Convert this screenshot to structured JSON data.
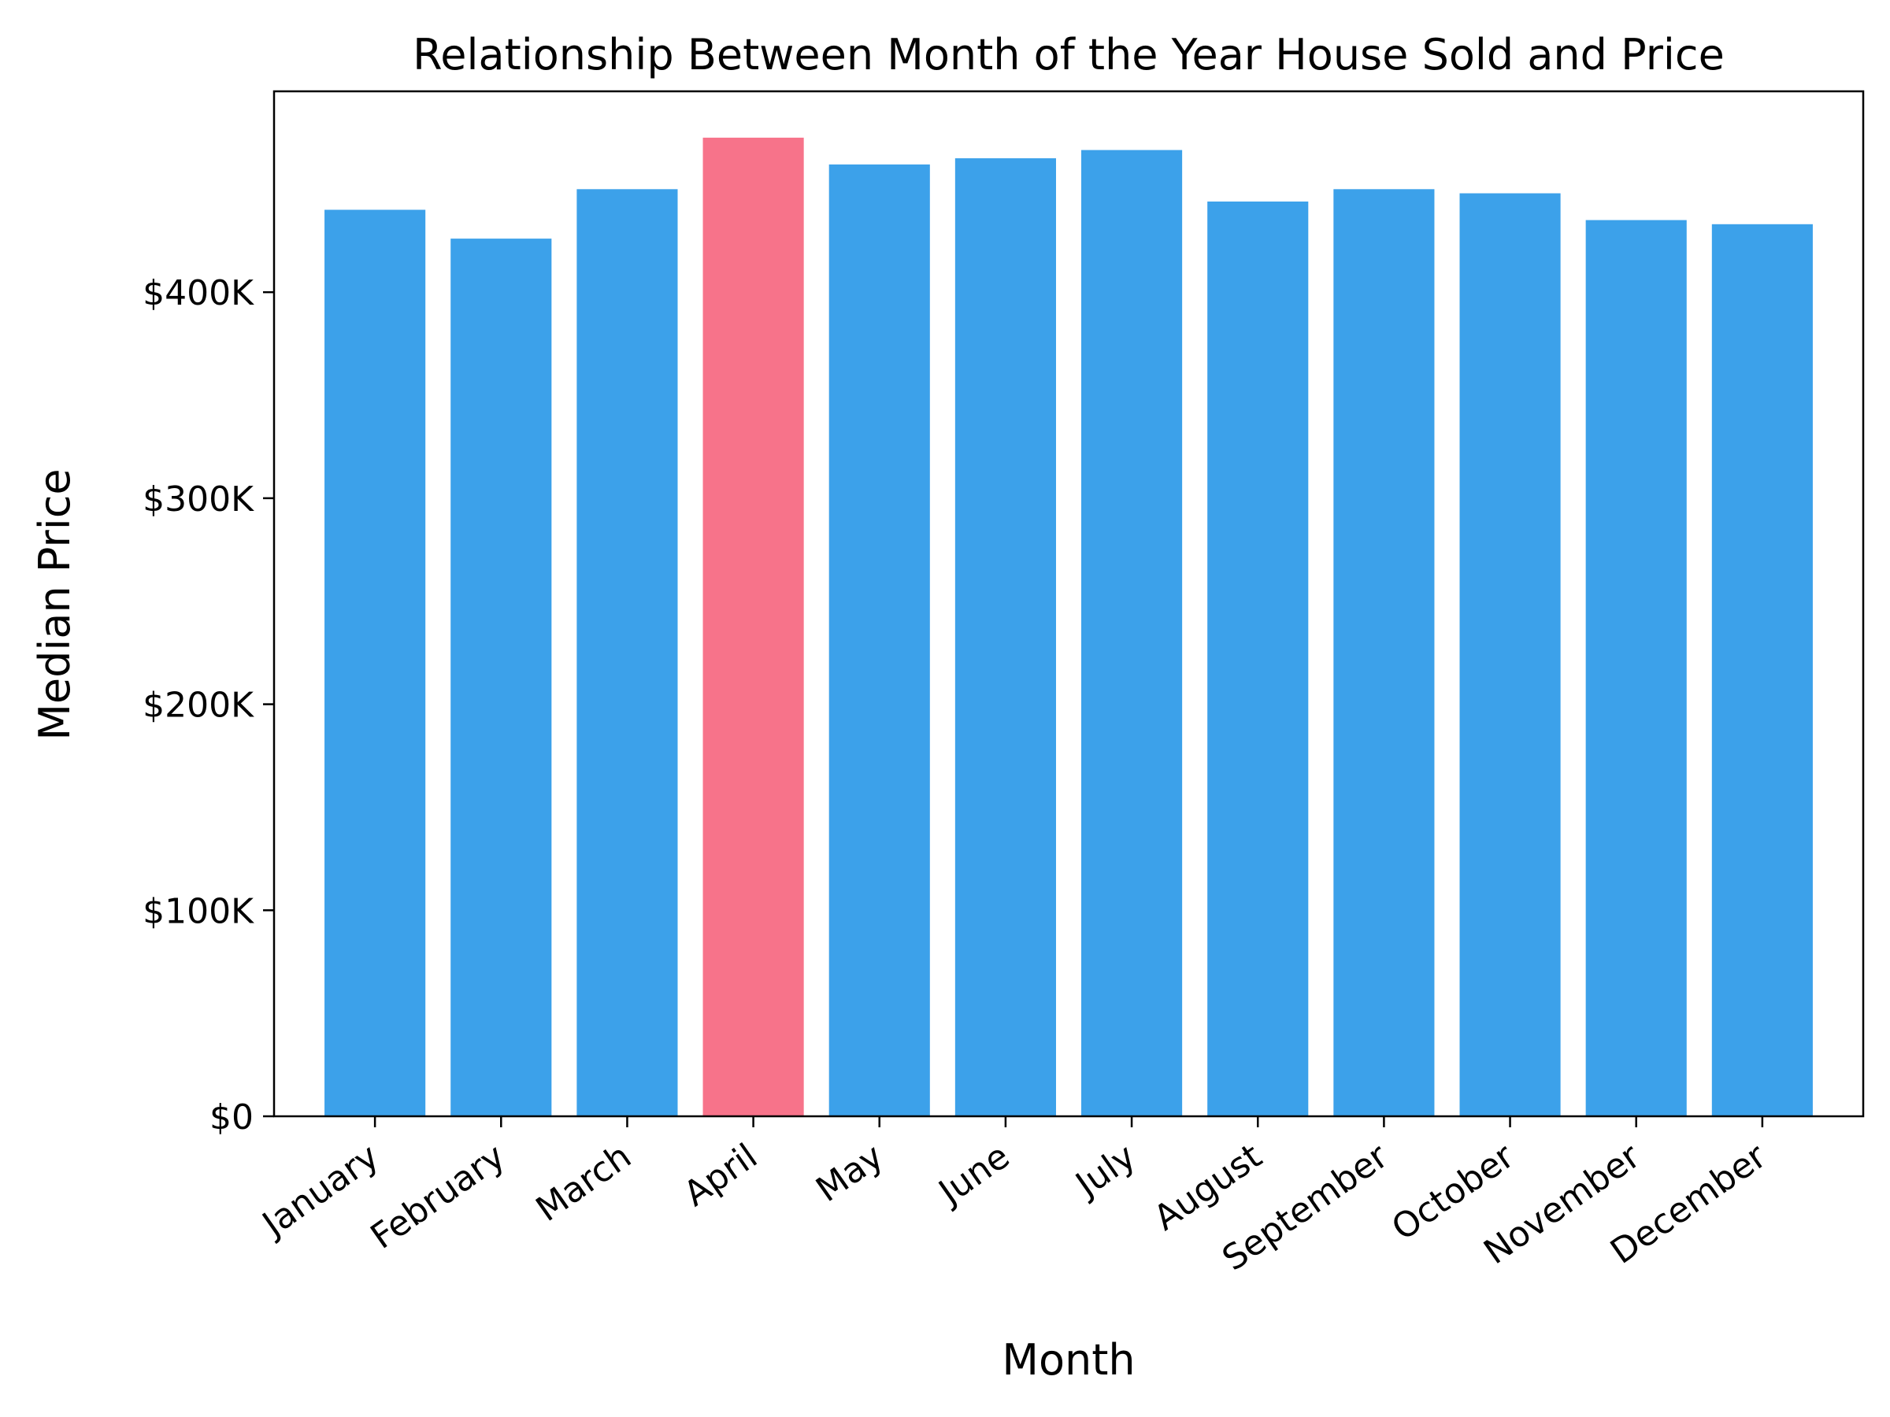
{
  "chart_data": {
    "type": "bar",
    "title": "Relationship Between Month of the Year House Sold and Price",
    "xlabel": "Month",
    "ylabel": "Median Price",
    "categories": [
      "January",
      "February",
      "March",
      "April",
      "May",
      "June",
      "July",
      "August",
      "September",
      "October",
      "November",
      "December"
    ],
    "values": [
      440000,
      426000,
      450000,
      475000,
      462000,
      465000,
      469000,
      444000,
      450000,
      448000,
      435000,
      433000
    ],
    "ylim": [
      0,
      497500
    ],
    "yticks": [
      0,
      100000,
      200000,
      300000,
      400000
    ],
    "ytick_labels": [
      "$0",
      "$100K",
      "$200K",
      "$300K",
      "$400K"
    ],
    "highlight_category": "April",
    "colors": {
      "default_bar": "#3ca1ea",
      "highlight_bar": "#f7738a",
      "axis": "#000000"
    },
    "grid": false,
    "legend": "none"
  }
}
